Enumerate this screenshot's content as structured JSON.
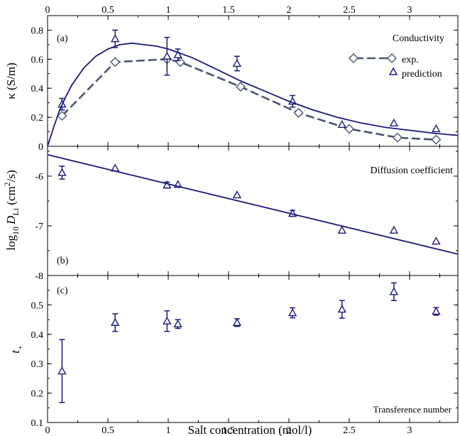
{
  "colors": {
    "model": "#1a1a7a",
    "experiment": "#4a5570",
    "marker_fill": "#ffffff"
  },
  "chart_data": [
    {
      "type": "line",
      "panel_label": "(a)",
      "title": "Conductivity",
      "xlabel": "",
      "ylabel": "κ (S/m)",
      "xlim": [
        0,
        3.4
      ],
      "ylim": [
        0,
        0.9
      ],
      "yticks": [
        0,
        0.2,
        0.4,
        0.6,
        0.8
      ],
      "ytick_labels": [
        "0",
        "0.2",
        "0.4",
        "0.6",
        "0.8"
      ],
      "top_xticks": [
        0,
        0.5,
        1,
        1.5,
        2,
        2.5,
        3
      ],
      "top_xtick_labels": [
        "0",
        "0.5",
        "1",
        "1.5",
        "2",
        "2.5",
        "3"
      ],
      "legend": {
        "position": "right",
        "entries": [
          "exp.",
          "prediction"
        ]
      },
      "series": [
        {
          "name": "exp.",
          "style": "dashed-diamond",
          "x": [
            0.12,
            0.56,
            0.99,
            1.1,
            1.6,
            2.08,
            2.5,
            2.9,
            3.22
          ],
          "y": [
            0.21,
            0.58,
            0.6,
            0.58,
            0.41,
            0.23,
            0.12,
            0.06,
            0.045
          ]
        },
        {
          "name": "prediction",
          "style": "triangle-errorbar",
          "x": [
            0.12,
            0.56,
            0.99,
            1.08,
            1.57,
            2.03,
            2.44,
            2.87,
            3.22
          ],
          "y": [
            0.29,
            0.74,
            0.62,
            0.63,
            0.57,
            0.31,
            0.15,
            0.16,
            0.12
          ],
          "err": [
            0.04,
            0.06,
            0.13,
            0.04,
            0.05,
            0.04,
            0.0,
            0.0,
            0.0
          ]
        },
        {
          "style": "solid-line",
          "x": [
            0.0,
            0.05,
            0.1,
            0.15,
            0.2,
            0.3,
            0.4,
            0.5,
            0.6,
            0.7,
            0.8,
            0.9,
            1.0,
            1.2,
            1.4,
            1.6,
            1.8,
            2.0,
            2.2,
            2.4,
            2.6,
            2.8,
            3.0,
            3.2,
            3.4
          ],
          "y": [
            0.0,
            0.13,
            0.25,
            0.34,
            0.42,
            0.54,
            0.62,
            0.67,
            0.7,
            0.71,
            0.7,
            0.69,
            0.67,
            0.61,
            0.53,
            0.45,
            0.38,
            0.31,
            0.25,
            0.2,
            0.16,
            0.13,
            0.11,
            0.09,
            0.075
          ]
        }
      ]
    },
    {
      "type": "line",
      "panel_label": "(b)",
      "title": "Diffusion coefficient",
      "xlabel": "",
      "ylabel_parts": {
        "pre": "log",
        "pre_sub": "10",
        "var": "D",
        "var_sub": "Li",
        "unit": " (cm",
        "unit_sup": "2",
        "unit_end": "/s)"
      },
      "xlim": [
        0,
        3.4
      ],
      "ylim": [
        -8,
        -5.4
      ],
      "yticks": [
        -8,
        -7,
        -6
      ],
      "ytick_labels": [
        "-8",
        "-7",
        "-6"
      ],
      "series": [
        {
          "style": "triangle-errorbar",
          "x": [
            0.12,
            0.56,
            0.99,
            1.08,
            1.57,
            2.03,
            2.44,
            2.87,
            3.22
          ],
          "y": [
            -5.93,
            -5.84,
            -6.18,
            -6.17,
            -6.38,
            -6.75,
            -7.09,
            -7.09,
            -7.31
          ],
          "err": [
            0.13,
            0.0,
            0.06,
            0.0,
            0.0,
            0.06,
            0.0,
            0.0,
            0.0
          ]
        },
        {
          "style": "solid-line",
          "x": [
            0.0,
            3.4
          ],
          "y": [
            -5.57,
            -7.57
          ]
        }
      ]
    },
    {
      "type": "scatter",
      "panel_label": "(c)",
      "title": "Transference number",
      "xlabel": "Salt concentration (mol/l)",
      "ylabel_parts": {
        "var": "t",
        "var_sub": "+"
      },
      "xlim": [
        0,
        3.4
      ],
      "ylim": [
        0.1,
        0.6
      ],
      "yticks": [
        0.1,
        0.2,
        0.3,
        0.4,
        0.5
      ],
      "ytick_labels": [
        "0.1",
        "0.2",
        "0.3",
        "0.4",
        "0.5"
      ],
      "xticks": [
        0,
        0.5,
        1,
        1.5,
        2,
        2.5,
        3
      ],
      "xtick_labels": [
        "0",
        "0.5",
        "1",
        "1.5",
        "2",
        "2.5",
        "3"
      ],
      "series": [
        {
          "style": "triangle-errorbar",
          "x": [
            0.12,
            0.56,
            0.99,
            1.08,
            1.57,
            2.03,
            2.44,
            2.87,
            3.22
          ],
          "y": [
            0.275,
            0.44,
            0.445,
            0.435,
            0.44,
            0.473,
            0.485,
            0.545,
            0.478
          ],
          "err": [
            0.107,
            0.03,
            0.035,
            0.015,
            0.013,
            0.017,
            0.03,
            0.03,
            0.013
          ]
        }
      ]
    }
  ]
}
